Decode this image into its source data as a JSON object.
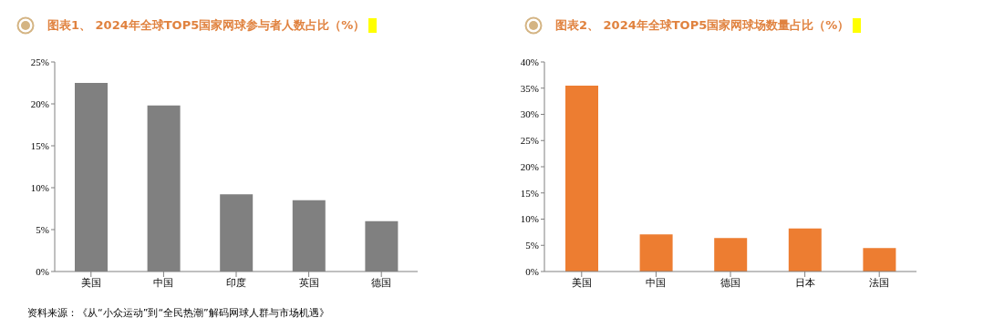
{
  "chart_data": [
    {
      "type": "bar",
      "title": "图表1、 2024年全球TOP5国家网球参与者人数占比（%）",
      "categories": [
        "美国",
        "中国",
        "印度",
        "英国",
        "德国"
      ],
      "values": [
        22.5,
        19.8,
        9.2,
        8.5,
        6.0
      ],
      "color": "#808080",
      "ylim": [
        0,
        25
      ],
      "yticks": [
        {
          "value": 0,
          "label": "0%"
        },
        {
          "value": 5,
          "label": "5%"
        },
        {
          "value": 10,
          "label": "10%"
        },
        {
          "value": 15,
          "label": "15%"
        },
        {
          "value": 20,
          "label": "20%"
        },
        {
          "value": 25,
          "label": "25%"
        }
      ],
      "grid": false,
      "annotations": [
        "资料来源：《从“小众运动”到“全民热潮”解码网球人群与市场机遇》"
      ]
    },
    {
      "type": "bar",
      "title": "图表2、 2024年全球TOP5国家网球场数量占比（%）",
      "categories": [
        "美国",
        "中国",
        "德国",
        "日本",
        "法国"
      ],
      "values": [
        35.5,
        7.1,
        6.4,
        8.2,
        4.5
      ],
      "color": "#ed7d31",
      "ylim": [
        0,
        40
      ],
      "yticks": [
        {
          "value": 0,
          "label": "0%"
        },
        {
          "value": 5,
          "label": "5%"
        },
        {
          "value": 10,
          "label": "10%"
        },
        {
          "value": 15,
          "label": "15%"
        },
        {
          "value": 20,
          "label": "20%"
        },
        {
          "value": 25,
          "label": "25%"
        },
        {
          "value": 30,
          "label": "30%"
        },
        {
          "value": 35,
          "label": "35%"
        },
        {
          "value": 40,
          "label": "40%"
        }
      ],
      "grid": false
    }
  ]
}
